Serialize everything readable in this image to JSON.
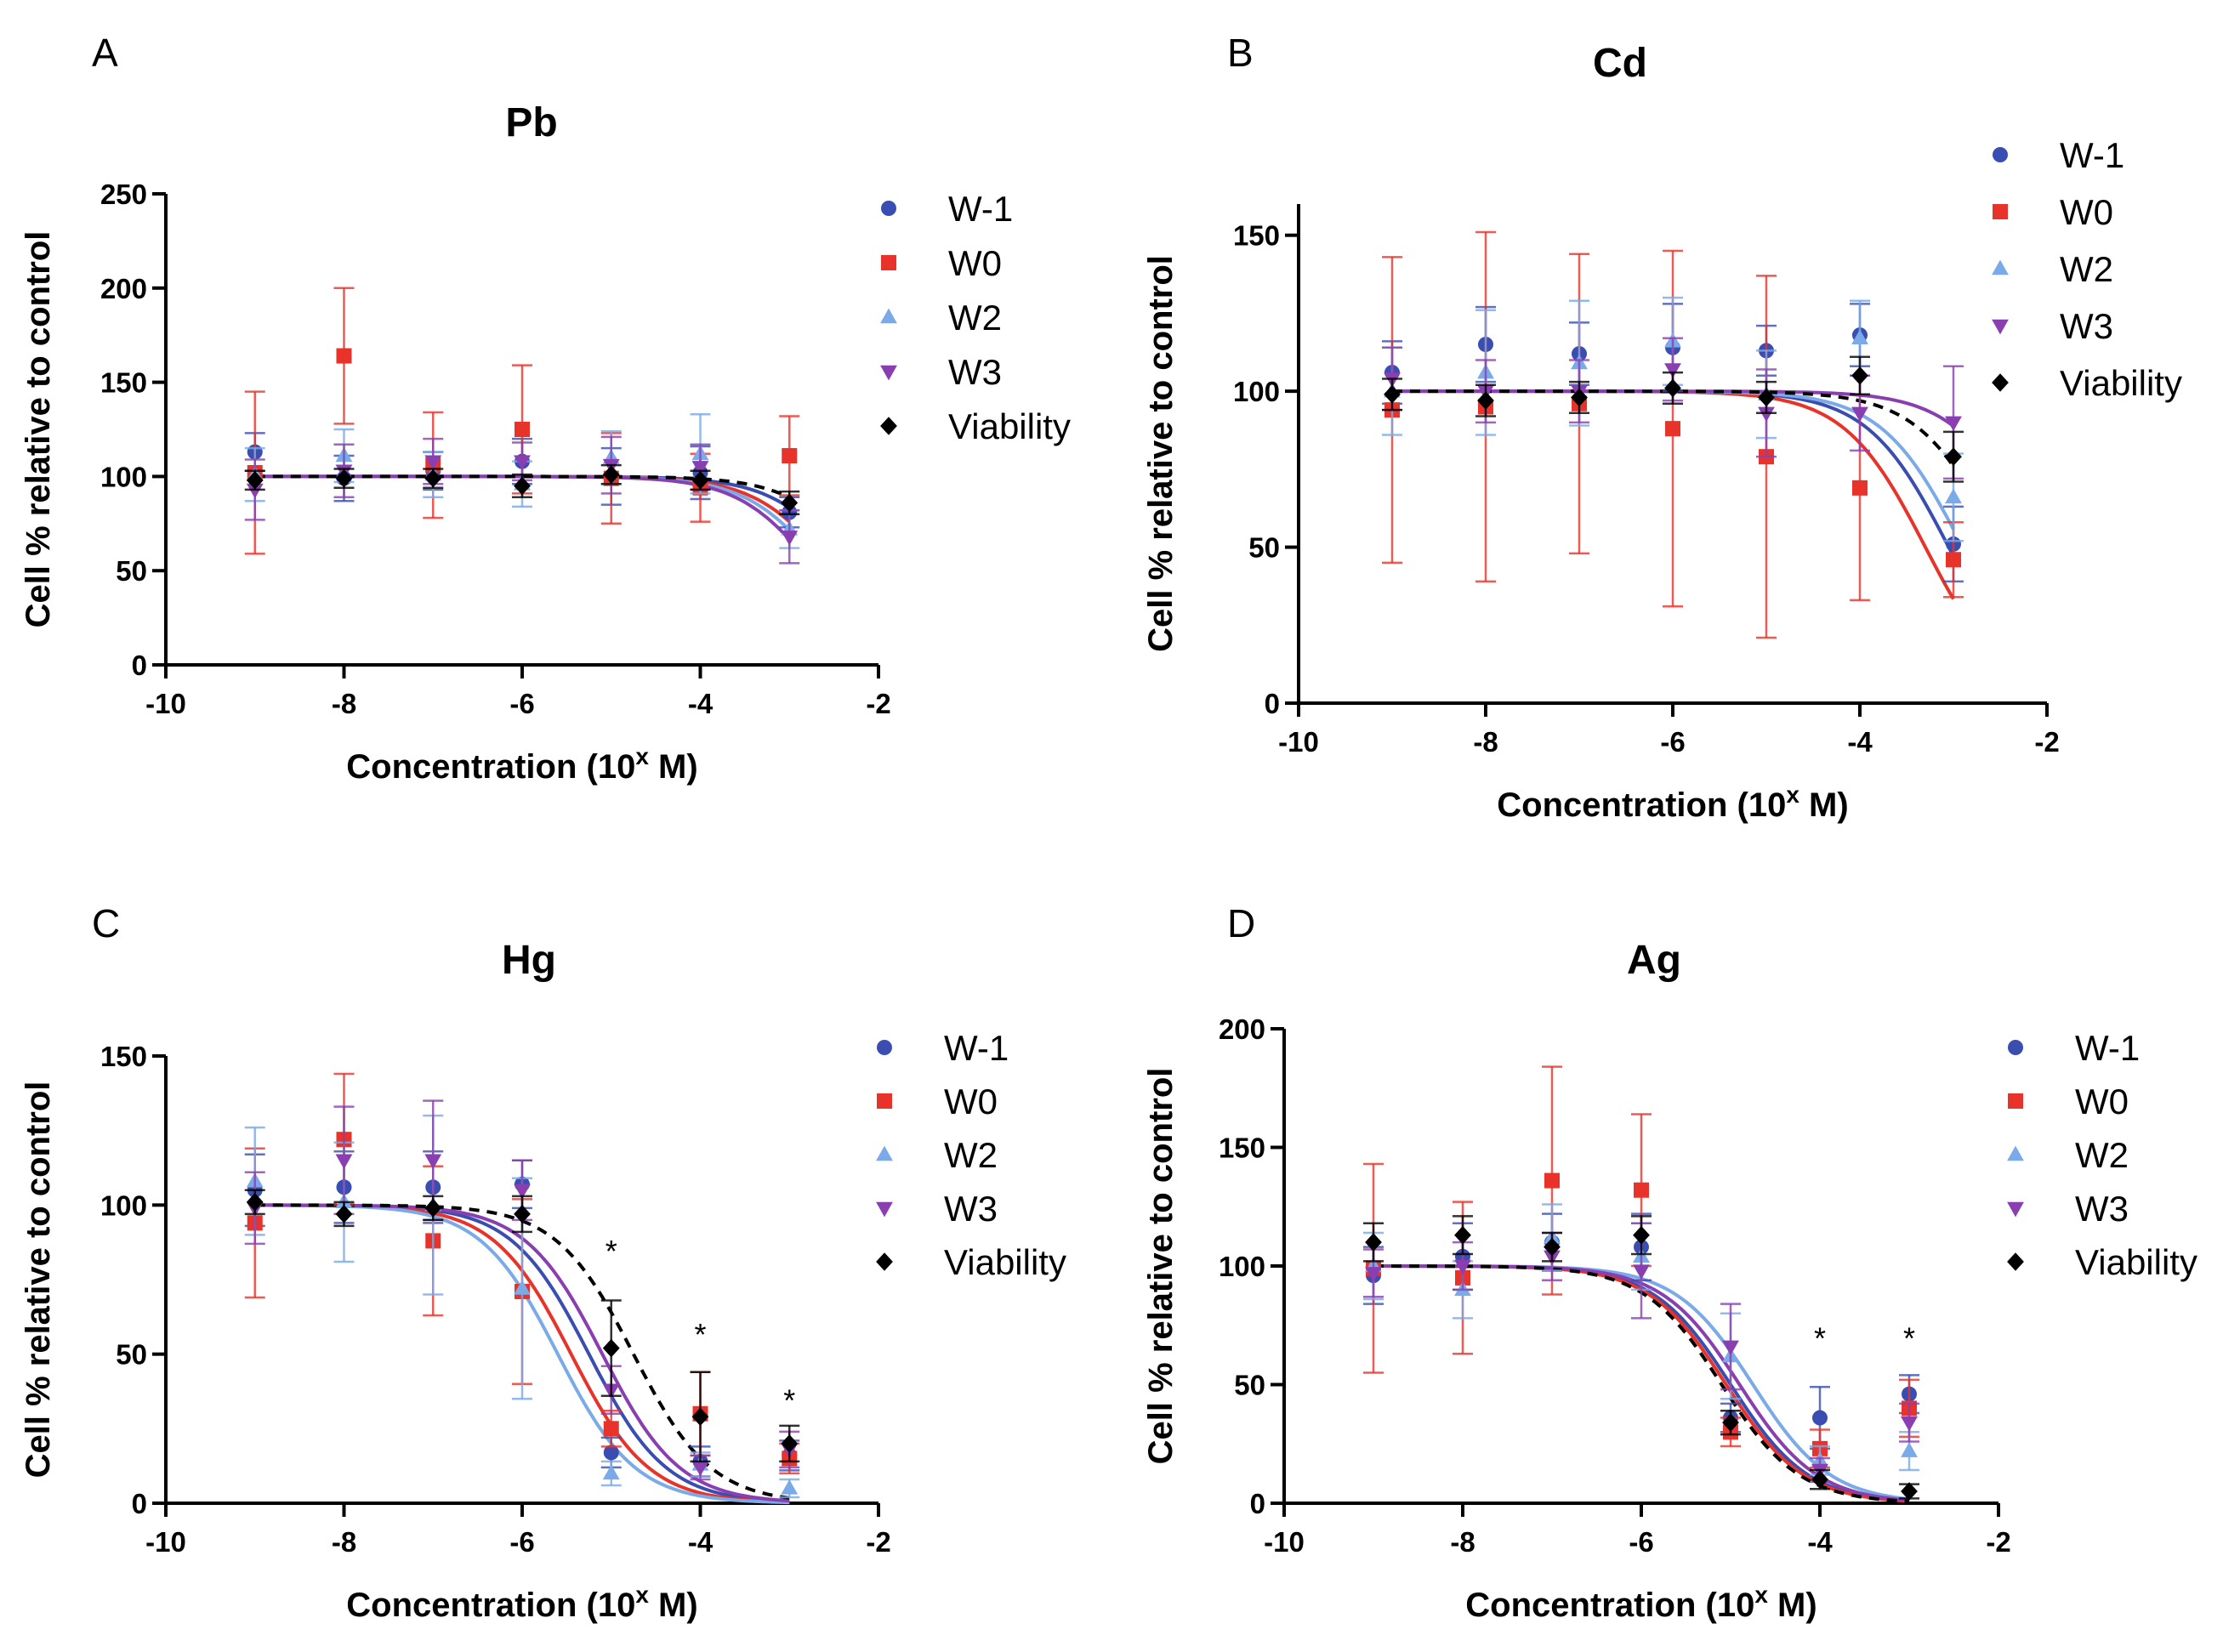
{
  "figure": {
    "x_label_prefix": "Concentration (10",
    "x_label_exp": "x",
    "x_label_suffix": " M)",
    "y_label": "Cell % relative to control"
  },
  "series_styles": [
    {
      "name": "W-1",
      "color": "#3a4db0",
      "marker": "circle"
    },
    {
      "name": "W0",
      "color": "#e8332a",
      "marker": "square"
    },
    {
      "name": "W2",
      "color": "#7aaae8",
      "marker": "triangle-up"
    },
    {
      "name": "W3",
      "color": "#8a3fb0",
      "marker": "triangle-down"
    },
    {
      "name": "Viability",
      "color": "#000000",
      "marker": "diamond",
      "dashed": true
    }
  ],
  "chart_data": [
    {
      "panel": "A",
      "type": "scatter",
      "title": "Pb",
      "xlabel": "Concentration (10x M)",
      "ylabel": "Cell % relative to control",
      "xlim": [
        -10,
        -2
      ],
      "ylim": [
        0,
        250
      ],
      "xticks": [
        -10,
        -8,
        -6,
        -4,
        -2
      ],
      "yticks": [
        0,
        50,
        100,
        150,
        200,
        250
      ],
      "x": [
        -9,
        -8,
        -7,
        -6,
        -5,
        -4,
        -3
      ],
      "legend": "top-right",
      "series": [
        {
          "name": "W-1",
          "values": [
            113,
            99,
            103,
            108,
            100,
            102,
            81
          ],
          "err": [
            10,
            12,
            10,
            12,
            15,
            14,
            8
          ],
          "ic50": -2.3,
          "hill": 1.0
        },
        {
          "name": "W0",
          "values": [
            102,
            164,
            106,
            125,
            99,
            94,
            111
          ],
          "err": [
            43,
            36,
            28,
            34,
            24,
            18,
            21
          ],
          "ic50": -2.5,
          "hill": 1.0
        },
        {
          "name": "W2",
          "values": [
            101,
            111,
            101,
            96,
            110,
            112,
            72
          ],
          "err": [
            14,
            14,
            12,
            12,
            14,
            21,
            10
          ],
          "ic50": -2.6,
          "hill": 1.0
        },
        {
          "name": "W3",
          "values": [
            93,
            103,
            108,
            108,
            106,
            105,
            68
          ],
          "err": [
            16,
            14,
            12,
            10,
            15,
            12,
            14
          ],
          "ic50": -2.7,
          "hill": 1.0
        },
        {
          "name": "Viability",
          "values": [
            98,
            99,
            99,
            95,
            101,
            98,
            86
          ],
          "err": [
            5,
            5,
            5,
            6,
            5,
            5,
            6
          ],
          "ic50": -2.1,
          "hill": 1.0
        }
      ],
      "stars": []
    },
    {
      "panel": "B",
      "type": "scatter",
      "title": "Cd",
      "xlabel": "Concentration (10x M)",
      "ylabel": "Cell % relative to control",
      "xlim": [
        -10,
        -2
      ],
      "ylim": [
        0,
        160
      ],
      "xticks": [
        -10,
        -8,
        -6,
        -4,
        -2
      ],
      "yticks": [
        0,
        50,
        100,
        150
      ],
      "x": [
        -9,
        -8,
        -7,
        -6,
        -5,
        -4,
        -3
      ],
      "legend": "top-right",
      "series": [
        {
          "name": "W-1",
          "values": [
            106,
            115,
            112,
            114,
            113,
            118,
            51
          ],
          "err": [
            10,
            12,
            10,
            14,
            8,
            10,
            12
          ],
          "ic50": -3.05,
          "hill": 1.0
        },
        {
          "name": "W0",
          "values": [
            94,
            95,
            96,
            88,
            79,
            69,
            46
          ],
          "err": [
            49,
            56,
            48,
            57,
            58,
            36,
            12
          ],
          "ic50": -3.3,
          "hill": 1.0
        },
        {
          "name": "W2",
          "values": [
            100,
            106,
            109,
            116,
            99,
            117,
            66
          ],
          "err": [
            14,
            20,
            20,
            14,
            14,
            12,
            14
          ],
          "ic50": -2.9,
          "hill": 1.0
        },
        {
          "name": "W3",
          "values": [
            104,
            100,
            100,
            107,
            93,
            93,
            90
          ],
          "err": [
            10,
            10,
            10,
            10,
            14,
            12,
            18
          ],
          "ic50": -2.1,
          "hill": 1.0
        },
        {
          "name": "Viability",
          "values": [
            99,
            97,
            98,
            101,
            98,
            105,
            79
          ],
          "err": [
            5,
            5,
            5,
            5,
            5,
            6,
            8
          ],
          "ic50": -2.5,
          "hill": 1.0
        }
      ],
      "stars": []
    },
    {
      "panel": "C",
      "type": "scatter",
      "title": "Hg",
      "xlabel": "Concentration (10x M)",
      "ylabel": "Cell % relative to control",
      "xlim": [
        -10,
        -2
      ],
      "ylim": [
        0,
        150
      ],
      "xticks": [
        -10,
        -8,
        -6,
        -4,
        -2
      ],
      "yticks": [
        0,
        50,
        100,
        150
      ],
      "x": [
        -9,
        -8,
        -7,
        -6,
        -5,
        -4,
        -3
      ],
      "legend": "top-right",
      "series": [
        {
          "name": "W-1",
          "values": [
            105,
            106,
            106,
            107,
            17,
            14,
            16
          ],
          "err": [
            12,
            12,
            12,
            8,
            5,
            5,
            5
          ],
          "ic50": -5.25,
          "hill": 1.0
        },
        {
          "name": "W0",
          "values": [
            94,
            122,
            88,
            71,
            25,
            30,
            15
          ],
          "err": [
            25,
            22,
            25,
            31,
            6,
            14,
            5
          ],
          "ic50": -5.45,
          "hill": 1.0
        },
        {
          "name": "W2",
          "values": [
            108,
            101,
            100,
            72,
            10,
            13,
            5
          ],
          "err": [
            18,
            20,
            30,
            37,
            4,
            4,
            3
          ],
          "ic50": -5.6,
          "hill": 1.0
        },
        {
          "name": "W3",
          "values": [
            99,
            115,
            115,
            105,
            38,
            12,
            18
          ],
          "err": [
            12,
            18,
            20,
            10,
            8,
            4,
            6
          ],
          "ic50": -5.1,
          "hill": 1.0
        },
        {
          "name": "Viability",
          "values": [
            101,
            97,
            99,
            97,
            52,
            29,
            20
          ],
          "err": [
            4,
            4,
            4,
            6,
            16,
            15,
            6
          ],
          "ic50": -4.75,
          "hill": 1.0
        }
      ],
      "stars": [
        {
          "x": -5,
          "y": 85,
          "label": "*"
        },
        {
          "x": -4,
          "y": 57,
          "label": "*"
        },
        {
          "x": -3,
          "y": 35,
          "label": "*"
        }
      ]
    },
    {
      "panel": "D",
      "type": "scatter",
      "title": "Ag",
      "xlabel": "Concentration (10x M)",
      "ylabel": "Cell % relative to control",
      "xlim": [
        -10,
        -2
      ],
      "ylim": [
        0,
        200
      ],
      "xticks": [
        -10,
        -8,
        -6,
        -4,
        -2
      ],
      "yticks": [
        0,
        50,
        100,
        150,
        200
      ],
      "x": [
        -9,
        -8,
        -7,
        -6,
        -5,
        -4,
        -3
      ],
      "legend": "top-right",
      "series": [
        {
          "name": "W-1",
          "values": [
            96,
            104,
            110,
            108,
            36,
            36,
            46
          ],
          "err": [
            12,
            14,
            12,
            14,
            6,
            13,
            8
          ],
          "ic50": -5.0,
          "hill": 1.0
        },
        {
          "name": "W0",
          "values": [
            99,
            95,
            136,
            132,
            30,
            23,
            40
          ],
          "err": [
            44,
            32,
            48,
            32,
            6,
            8,
            12
          ],
          "ic50": -5.05,
          "hill": 1.0
        },
        {
          "name": "W2",
          "values": [
            100,
            90,
            112,
            104,
            62,
            18,
            22
          ],
          "err": [
            14,
            12,
            14,
            14,
            18,
            6,
            8
          ],
          "ic50": -4.75,
          "hill": 1.0
        },
        {
          "name": "W3",
          "values": [
            97,
            100,
            104,
            98,
            66,
            14,
            34
          ],
          "err": [
            10,
            10,
            10,
            20,
            18,
            5,
            8
          ],
          "ic50": -4.9,
          "hill": 1.0
        },
        {
          "name": "Viability",
          "values": [
            110,
            113,
            108,
            113,
            34,
            10,
            5
          ],
          "err": [
            8,
            8,
            6,
            8,
            5,
            4,
            3
          ],
          "ic50": -5.1,
          "hill": 1.0
        }
      ],
      "stars": [
        {
          "x": -4,
          "y": 70,
          "label": "*"
        },
        {
          "x": -3,
          "y": 70,
          "label": "*"
        }
      ]
    }
  ]
}
